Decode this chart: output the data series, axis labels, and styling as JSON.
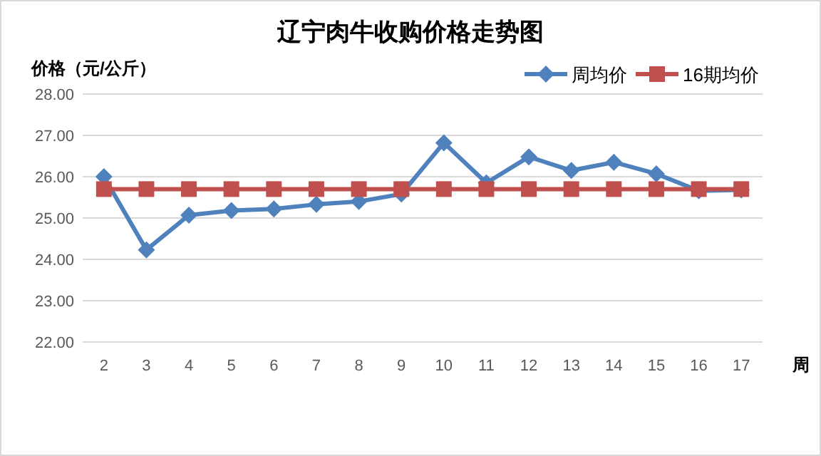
{
  "chart_data": {
    "type": "line",
    "title": "辽宁肉牛收购价格走势图",
    "ylabel": "价格（元/公斤）",
    "xlabel": "周",
    "categories": [
      "2",
      "3",
      "4",
      "5",
      "6",
      "7",
      "8",
      "9",
      "10",
      "11",
      "12",
      "13",
      "14",
      "15",
      "16",
      "17"
    ],
    "series": [
      {
        "name": "周均价",
        "color": "#4f81bd",
        "marker": "diamond",
        "values": [
          26.0,
          24.23,
          25.07,
          25.18,
          25.22,
          25.33,
          25.4,
          25.58,
          26.82,
          25.85,
          26.48,
          26.15,
          26.35,
          26.07,
          25.66,
          25.68
        ]
      },
      {
        "name": "16期均价",
        "color": "#c0504d",
        "marker": "square",
        "values": [
          25.7,
          25.7,
          25.7,
          25.7,
          25.7,
          25.7,
          25.7,
          25.7,
          25.7,
          25.7,
          25.7,
          25.7,
          25.7,
          25.7,
          25.7,
          25.7
        ]
      }
    ],
    "ylim": [
      22,
      28
    ],
    "yticks": [
      {
        "value": 22,
        "label": "22.00"
      },
      {
        "value": 23,
        "label": "23.00"
      },
      {
        "value": 24,
        "label": "24.00"
      },
      {
        "value": 25,
        "label": "25.00"
      },
      {
        "value": 26,
        "label": "26.00"
      },
      {
        "value": 27,
        "label": "27.00"
      },
      {
        "value": 28,
        "label": "28.00"
      }
    ],
    "grid": "y",
    "legend": "top right",
    "line_style": "solid"
  }
}
